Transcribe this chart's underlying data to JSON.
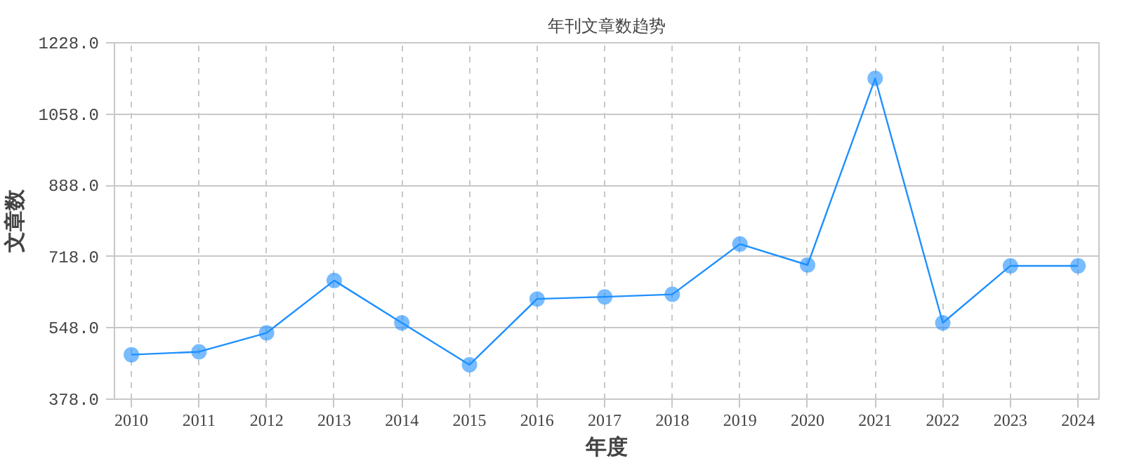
{
  "chart_data": {
    "type": "line",
    "title": "年刊文章数趋势",
    "xlabel": "年度",
    "ylabel": "文章数",
    "categories": [
      "2010",
      "2011",
      "2012",
      "2013",
      "2014",
      "2015",
      "2016",
      "2017",
      "2018",
      "2019",
      "2020",
      "2021",
      "2022",
      "2023",
      "2024"
    ],
    "series": [
      {
        "color": "#1e90ff",
        "values": [
          484,
          491,
          536,
          661,
          560,
          460,
          617,
          622,
          628,
          748,
          698,
          1143,
          560,
          696,
          696
        ]
      }
    ],
    "ylim": [
      378,
      1228
    ],
    "yticks": [
      {
        "value": 378,
        "label": "378.0"
      },
      {
        "value": 548,
        "label": "548.0"
      },
      {
        "value": 718,
        "label": "718.0"
      },
      {
        "value": 888,
        "label": "888.0"
      },
      {
        "value": 1058,
        "label": "1058.0"
      },
      {
        "value": 1228,
        "label": "1228.0"
      }
    ],
    "grid": true,
    "marker": "circle",
    "line_style": "solid"
  }
}
